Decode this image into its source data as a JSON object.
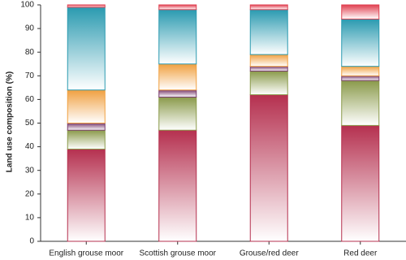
{
  "chart_data": {
    "type": "stacked_bar",
    "y_label": "Land use composition (%)",
    "categories": [
      "English grouse moor",
      "Scottish grouse moor",
      "Grouse/red deer",
      "Red deer"
    ],
    "series": [
      {
        "color": "#b5304f",
        "values": [
          39,
          47,
          62,
          49
        ]
      },
      {
        "color": "#8a9a4a",
        "values": [
          8,
          14,
          10,
          19
        ]
      },
      {
        "color": "#7a3d6e",
        "values": [
          3,
          3,
          2,
          2
        ]
      },
      {
        "color": "#f0a040",
        "values": [
          14,
          11,
          5,
          4
        ]
      },
      {
        "color": "#2a9ab0",
        "values": [
          35,
          23,
          19,
          20
        ]
      },
      {
        "color": "#e04050",
        "values": [
          1,
          2,
          2,
          6
        ]
      }
    ],
    "ylim": [
      0,
      100
    ],
    "yticks": [
      0,
      10,
      20,
      30,
      40,
      50,
      60,
      70,
      80,
      90,
      100
    ]
  }
}
